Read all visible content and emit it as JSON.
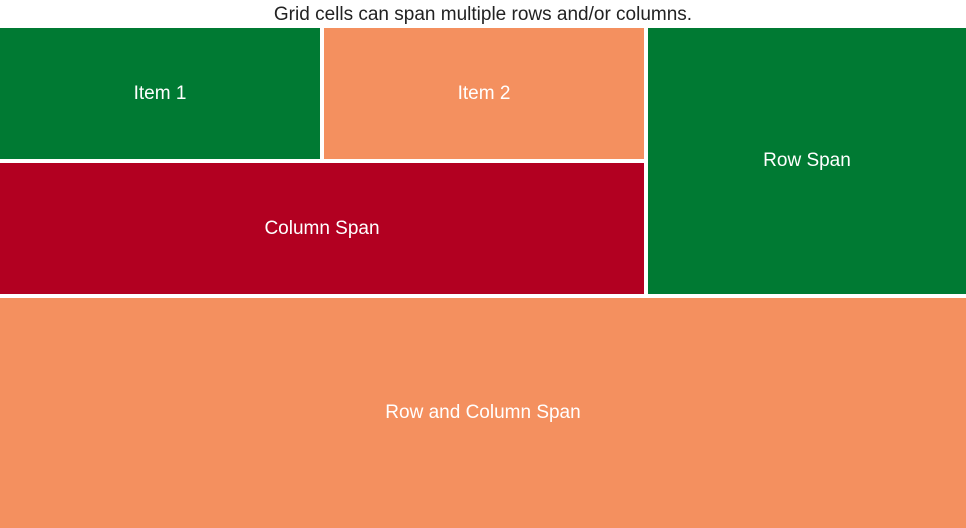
{
  "caption": "Grid cells can span multiple rows and/or columns.",
  "cells": [
    {
      "label": "Item 1",
      "color": "#007a33"
    },
    {
      "label": "Item 2",
      "color": "#f4905f"
    },
    {
      "label": "Row Span",
      "color": "#007a33"
    },
    {
      "label": "Column Span",
      "color": "#b20021"
    },
    {
      "label": "Row and Column Span",
      "color": "#f4905f"
    }
  ]
}
